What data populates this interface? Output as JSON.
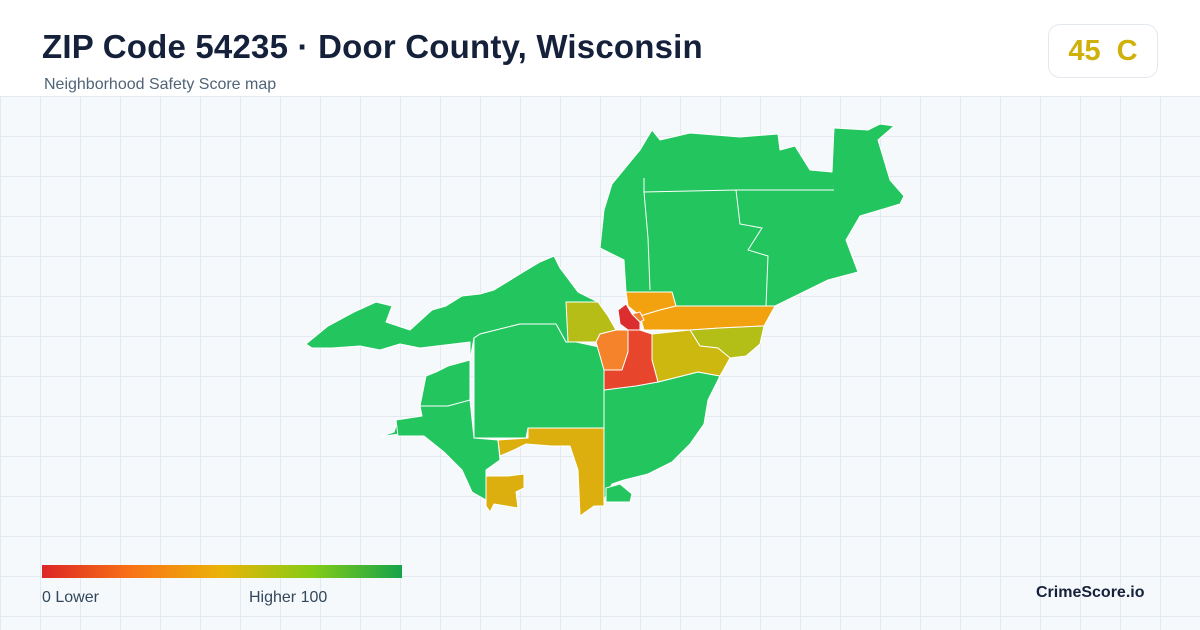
{
  "header": {
    "title": "ZIP Code 54235 · Door County, Wisconsin",
    "subtitle": "Neighborhood Safety Score map"
  },
  "score_badge": {
    "score": "45",
    "grade": "C",
    "color": "#cfb10a"
  },
  "legend": {
    "low_label": "0  Lower",
    "high_label": "Higher  100",
    "gradient_colors": [
      "#dc2626",
      "#f97316",
      "#eab308",
      "#84cc16",
      "#16a34a"
    ]
  },
  "brand": "CrimeScore.io",
  "map": {
    "color_scale": {
      "high": "#22c55e",
      "mid": "#c9b711",
      "orange": "#f59e0b",
      "orange_dark": "#f97f26",
      "low": "#e4472b",
      "lowest": "#dc2d2d",
      "yellow_green": "#b9bf16",
      "olive": "#cfb410"
    }
  }
}
